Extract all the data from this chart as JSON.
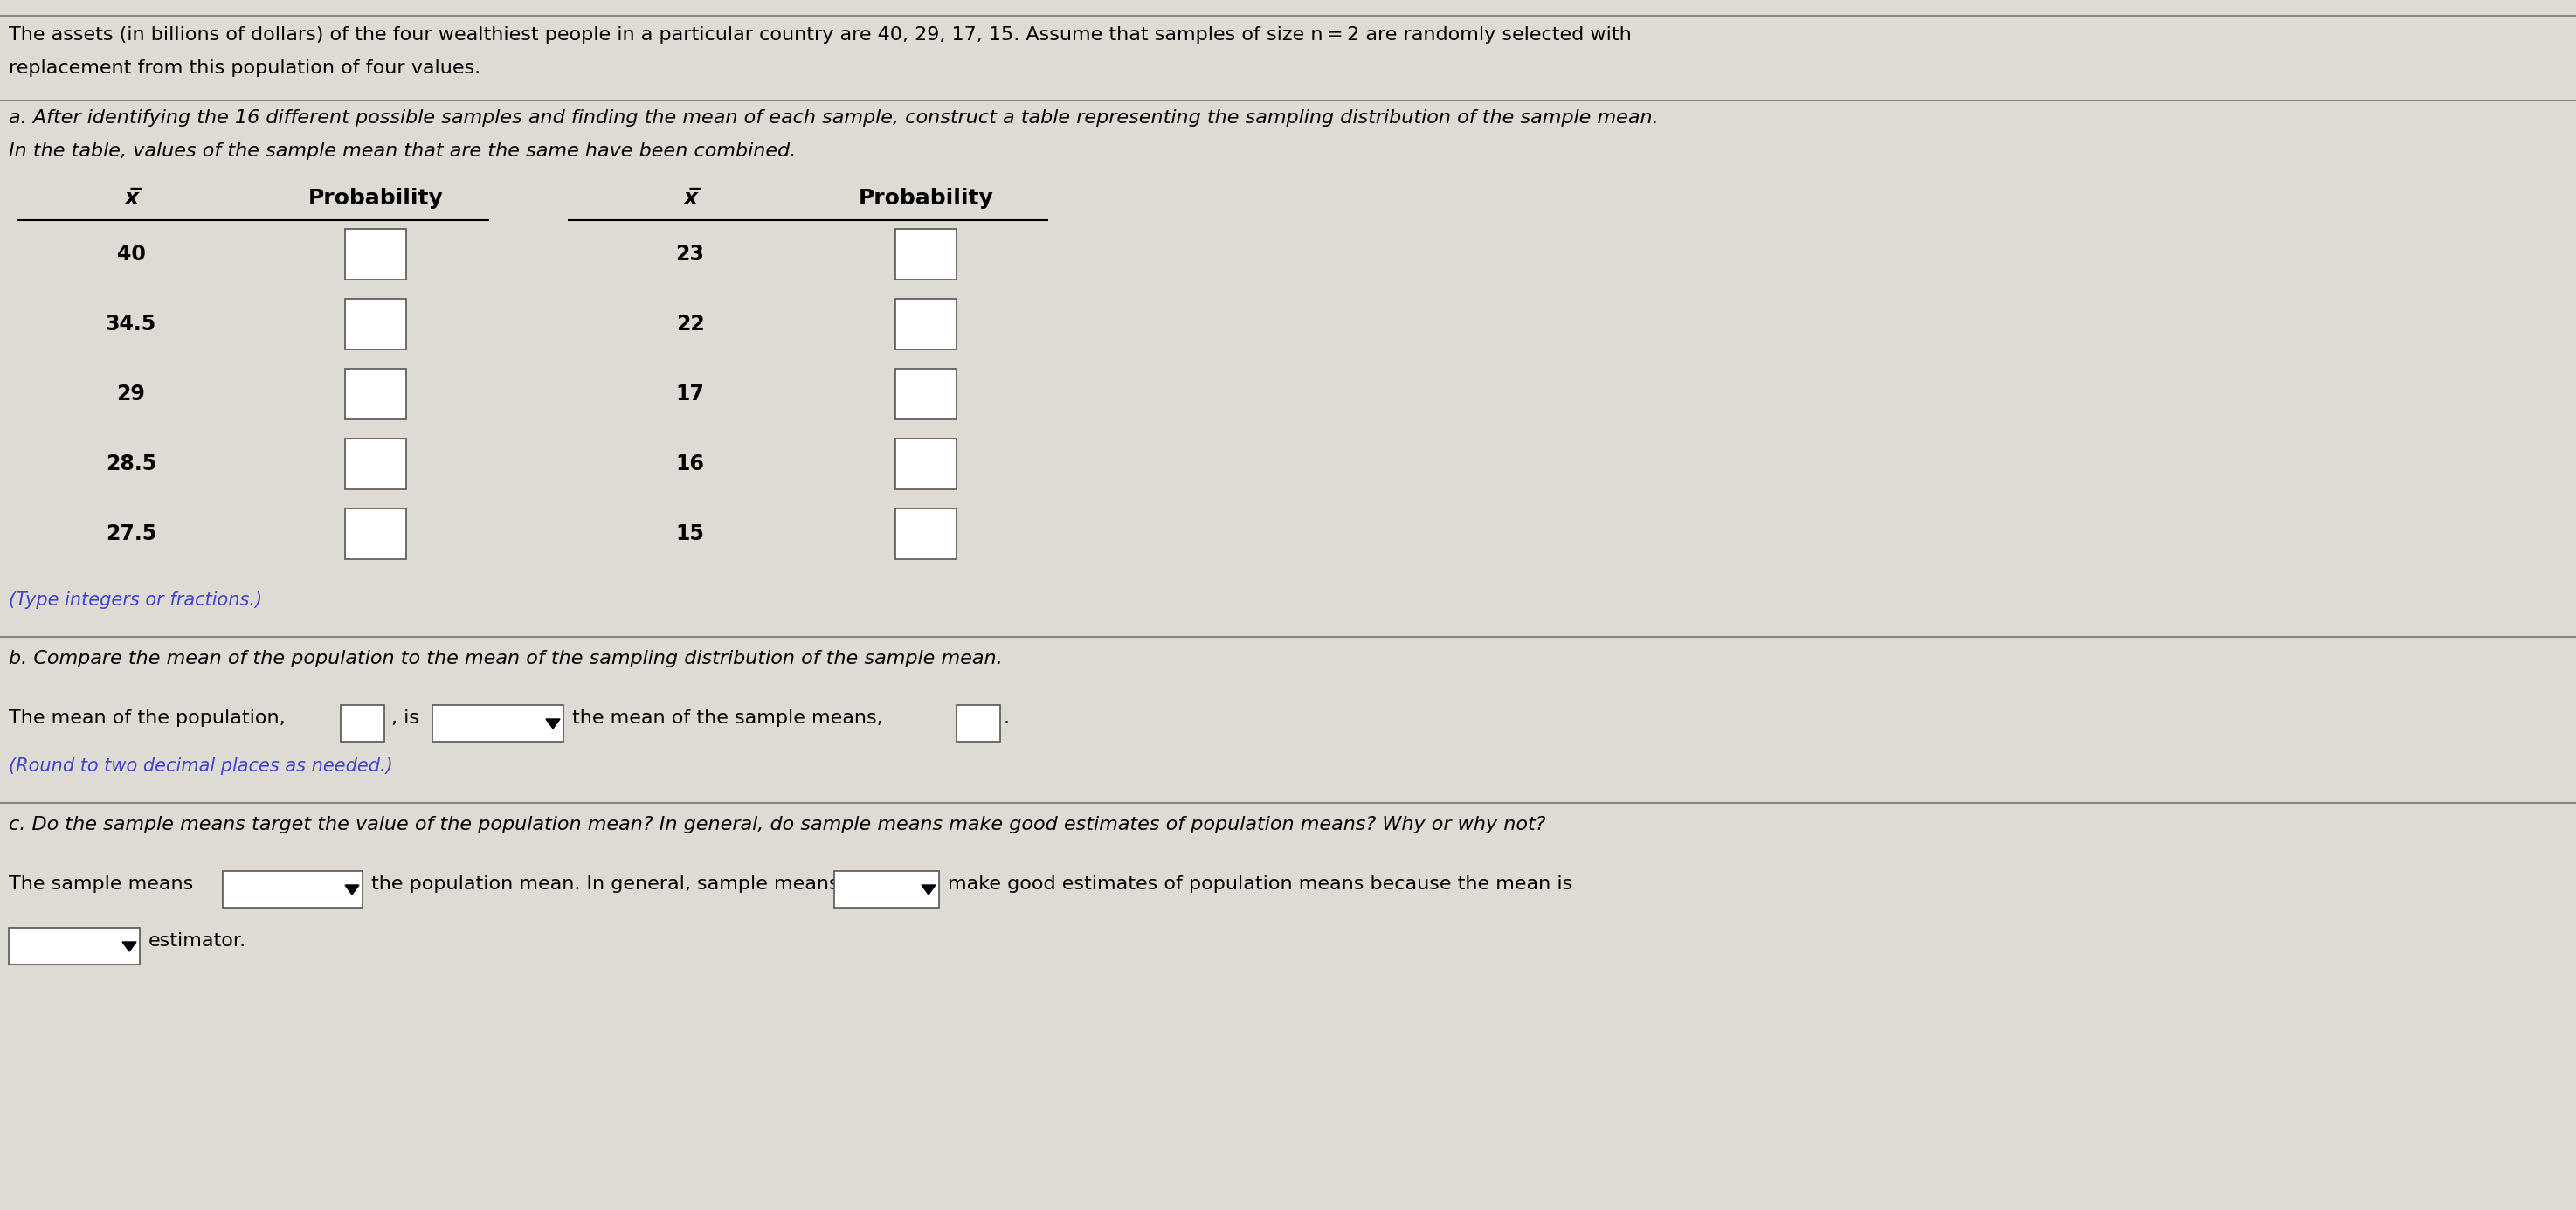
{
  "bg_color": "#dedad4",
  "text_color": "#000000",
  "title_line1": "The assets (in billions of dollars) of the four wealthiest people in a particular country are 40, 29, 17, 15. Assume that samples of size n = 2 are randomly selected with",
  "title_line2": "replacement from this population of four values.",
  "part_a_line1": "a. After identifying the 16 different possible samples and finding the mean of each sample, construct a table representing the sampling distribution of the sample mean.",
  "part_a_line2": "In the table, values of the sample mean that are the same have been combined.",
  "col_header_x": "x̅",
  "col_header_prob": "Probability",
  "col1_means": [
    "40",
    "34.5",
    "29",
    "28.5",
    "27.5"
  ],
  "col2_means": [
    "23",
    "22",
    "17",
    "16",
    "15"
  ],
  "type_note": "(Type integers or fractions.)",
  "part_b_label": "b. Compare the mean of the population to the mean of the sampling distribution of the sample mean.",
  "part_b_text1": "The mean of the population,",
  "part_b_text2": ", is",
  "part_b_text3": "the mean of the sample means,",
  "part_b_period": ".",
  "part_b_note": "(Round to two decimal places as needed.)",
  "part_c_label": "c. Do the sample means target the value of the population mean? In general, do sample means make good estimates of population means? Why or why not?",
  "part_c_text1": "The sample means",
  "part_c_text2": "the population mean. In general, sample means",
  "part_c_text3": "make good estimates of population means because the mean is",
  "part_c_text4": "estimator.",
  "sep_color": "#888888",
  "box_color": "#ffffff",
  "font_size": 16
}
